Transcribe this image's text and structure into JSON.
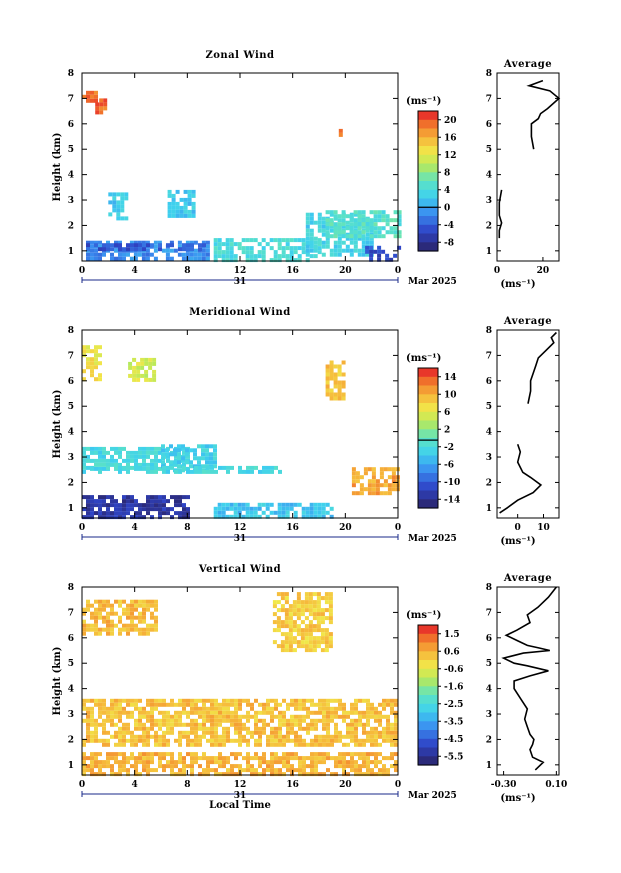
{
  "figure": {
    "date_axis_label": "Mar 2025",
    "day_label": "31",
    "xlabel": "Local Time",
    "ylabel": "Height (km)",
    "unit_label": "(ms⁻¹)"
  },
  "chart_data": [
    {
      "type": "heatmap",
      "title": "Zonal Wind",
      "ylabel": "Height (km)",
      "xlabel": "",
      "x_ticks": [
        "0",
        "4",
        "8",
        "12",
        "16",
        "20",
        "0"
      ],
      "y_ticks": [
        "1",
        "2",
        "3",
        "4",
        "5",
        "6",
        "7",
        "8"
      ],
      "xlim": [
        0,
        24
      ],
      "ylim": [
        0.6,
        8.0
      ],
      "colorbar": {
        "unit": "(ms⁻¹)",
        "range": [
          -10,
          22
        ],
        "ticks": [
          "20",
          "16",
          "12",
          "8",
          "4",
          "0",
          "-4",
          "-8"
        ],
        "zero_line": 0
      },
      "regions": [
        {
          "x": [
            0,
            1.0
          ],
          "y": [
            6.9,
            7.3
          ],
          "value": 20
        },
        {
          "x": [
            1.0,
            1.8
          ],
          "y": [
            6.4,
            7.0
          ],
          "value": 20
        },
        {
          "x": [
            19.5,
            19.8
          ],
          "y": [
            5.5,
            5.8
          ],
          "value": 20
        },
        {
          "x": [
            0.3,
            9.5
          ],
          "y": [
            0.7,
            1.4
          ],
          "value": -2
        },
        {
          "x": [
            0,
            9.5
          ],
          "y": [
            1.0,
            1.3
          ],
          "value": -5
        },
        {
          "x": [
            2.0,
            3.5
          ],
          "y": [
            2.3,
            3.3
          ],
          "value": 2
        },
        {
          "x": [
            6.5,
            8.5
          ],
          "y": [
            2.3,
            3.4
          ],
          "value": 2
        },
        {
          "x": [
            10.0,
            18.0
          ],
          "y": [
            0.7,
            1.5
          ],
          "value": 4
        },
        {
          "x": [
            17.0,
            22.0
          ],
          "y": [
            0.8,
            2.5
          ],
          "value": 3
        },
        {
          "x": [
            18.5,
            24.0
          ],
          "y": [
            1.5,
            2.6
          ],
          "value": 5
        },
        {
          "x": [
            21.5,
            24.0
          ],
          "y": [
            0.7,
            1.2
          ],
          "value": -6
        }
      ]
    },
    {
      "type": "heatmap",
      "title": "Meridional Wind",
      "ylabel": "Height (km)",
      "xlabel": "",
      "x_ticks": [
        "0",
        "4",
        "8",
        "12",
        "16",
        "20",
        "0"
      ],
      "y_ticks": [
        "1",
        "2",
        "3",
        "4",
        "5",
        "6",
        "7",
        "8"
      ],
      "xlim": [
        0,
        24
      ],
      "ylim": [
        0.6,
        8.0
      ],
      "colorbar": {
        "unit": "(ms⁻¹)",
        "range": [
          -16,
          17
        ],
        "ticks": [
          "14",
          "10",
          "6",
          "2",
          "-2",
          "-6",
          "-10",
          "-14"
        ],
        "zero_line": 0
      },
      "regions": [
        {
          "x": [
            0,
            1.5
          ],
          "y": [
            6.0,
            7.4
          ],
          "value": 8
        },
        {
          "x": [
            3.5,
            5.5
          ],
          "y": [
            6.0,
            6.9
          ],
          "value": 6
        },
        {
          "x": [
            18.5,
            20.0
          ],
          "y": [
            5.3,
            6.8
          ],
          "value": 10
        },
        {
          "x": [
            0,
            8.0
          ],
          "y": [
            2.5,
            3.4
          ],
          "value": -2
        },
        {
          "x": [
            6.0,
            10.0
          ],
          "y": [
            2.4,
            3.5
          ],
          "value": -3
        },
        {
          "x": [
            0,
            15.0
          ],
          "y": [
            2.45,
            2.65
          ],
          "value": -2
        },
        {
          "x": [
            0,
            8.0
          ],
          "y": [
            0.6,
            1.5
          ],
          "value": -14
        },
        {
          "x": [
            10.0,
            19.0
          ],
          "y": [
            0.7,
            1.2
          ],
          "value": -4
        },
        {
          "x": [
            20.5,
            24.0
          ],
          "y": [
            1.5,
            2.6
          ],
          "value": 12
        }
      ]
    },
    {
      "type": "heatmap",
      "title": "Vertical Wind",
      "ylabel": "Height (km)",
      "xlabel": "Local Time",
      "x_ticks": [
        "0",
        "4",
        "8",
        "12",
        "16",
        "20",
        "0"
      ],
      "y_ticks": [
        "1",
        "2",
        "3",
        "4",
        "5",
        "6",
        "7",
        "8"
      ],
      "xlim": [
        0,
        24
      ],
      "ylim": [
        0.6,
        8.0
      ],
      "colorbar": {
        "unit": "(ms⁻¹)",
        "range": [
          -6.0,
          2.0
        ],
        "ticks": [
          "1.5",
          "0.6",
          "-0.6",
          "-1.6",
          "-2.5",
          "-3.5",
          "-4.5",
          "-5.5"
        ]
      },
      "regions": [
        {
          "x": [
            0,
            5.5
          ],
          "y": [
            6.1,
            7.5
          ],
          "value": 0.5
        },
        {
          "x": [
            14.5,
            19.0
          ],
          "y": [
            5.5,
            7.8
          ],
          "value": 0.2
        },
        {
          "x": [
            0,
            24.0
          ],
          "y": [
            1.8,
            3.6
          ],
          "value": 0.4
        },
        {
          "x": [
            0,
            24.0
          ],
          "y": [
            0.6,
            1.5
          ],
          "value": 0.6
        }
      ]
    }
  ],
  "profiles": [
    {
      "title": "Average",
      "type": "line",
      "xlabel": "(ms⁻¹)",
      "x_ticks": [
        "0",
        "20"
      ],
      "xlim": [
        0,
        27
      ],
      "ylim": [
        0.6,
        8.0
      ],
      "y_ticks": [
        "1",
        "2",
        "3",
        "4",
        "5",
        "6",
        "7",
        "8"
      ],
      "segments": [
        {
          "x": [
            20,
            14,
            23,
            27,
            22,
            19,
            18,
            15,
            15,
            16
          ],
          "y": [
            7.7,
            7.5,
            7.3,
            7.0,
            6.6,
            6.4,
            6.2,
            6.0,
            5.5,
            5.0
          ]
        },
        {
          "x": [
            2,
            1,
            1,
            2,
            1,
            1
          ],
          "y": [
            3.4,
            2.9,
            2.4,
            2.1,
            1.8,
            1.5
          ]
        }
      ]
    },
    {
      "title": "Average",
      "type": "line",
      "xlabel": "(ms⁻¹)",
      "x_ticks": [
        "0",
        "10"
      ],
      "xlim": [
        -8,
        16
      ],
      "ylim": [
        0.6,
        8.0
      ],
      "y_ticks": [
        "1",
        "2",
        "3",
        "4",
        "5",
        "6",
        "7",
        "8"
      ],
      "segments": [
        {
          "x": [
            15,
            13,
            14,
            11,
            8,
            7,
            6,
            5,
            5,
            4
          ],
          "y": [
            7.9,
            7.7,
            7.5,
            7.2,
            6.9,
            6.6,
            6.3,
            6.0,
            5.6,
            5.1
          ]
        },
        {
          "x": [
            0,
            1,
            0,
            2,
            5,
            9,
            6,
            0,
            -4,
            -7
          ],
          "y": [
            3.5,
            3.2,
            2.8,
            2.4,
            2.2,
            1.9,
            1.6,
            1.3,
            1.0,
            0.8
          ]
        }
      ]
    },
    {
      "title": "Average",
      "type": "line",
      "xlabel": "(ms⁻¹)",
      "x_ticks": [
        "-0.30",
        "0.10"
      ],
      "xlim": [
        -0.35,
        0.12
      ],
      "ylim": [
        0.6,
        8.0
      ],
      "y_ticks": [
        "1",
        "2",
        "3",
        "4",
        "5",
        "6",
        "7",
        "8"
      ],
      "segments": [
        {
          "x": [
            0.1,
            0.07,
            0.04,
            -0.04,
            -0.12,
            -0.1,
            -0.2,
            -0.28,
            -0.2,
            -0.12,
            -0.03,
            0.05,
            -0.15,
            -0.3,
            -0.22,
            -0.12,
            0.04,
            -0.1,
            -0.22,
            -0.22,
            -0.17,
            -0.12,
            -0.14,
            -0.12,
            -0.1,
            -0.07,
            -0.08,
            -0.1,
            -0.08,
            0.0,
            -0.04,
            -0.06
          ],
          "y": [
            8.0,
            7.8,
            7.6,
            7.2,
            6.9,
            6.6,
            6.3,
            6.1,
            5.9,
            5.7,
            5.6,
            5.5,
            5.4,
            5.2,
            5.0,
            4.9,
            4.7,
            4.5,
            4.3,
            4.0,
            3.6,
            3.2,
            2.8,
            2.5,
            2.2,
            2.0,
            1.8,
            1.6,
            1.3,
            1.1,
            0.9,
            0.8
          ]
        }
      ]
    }
  ]
}
